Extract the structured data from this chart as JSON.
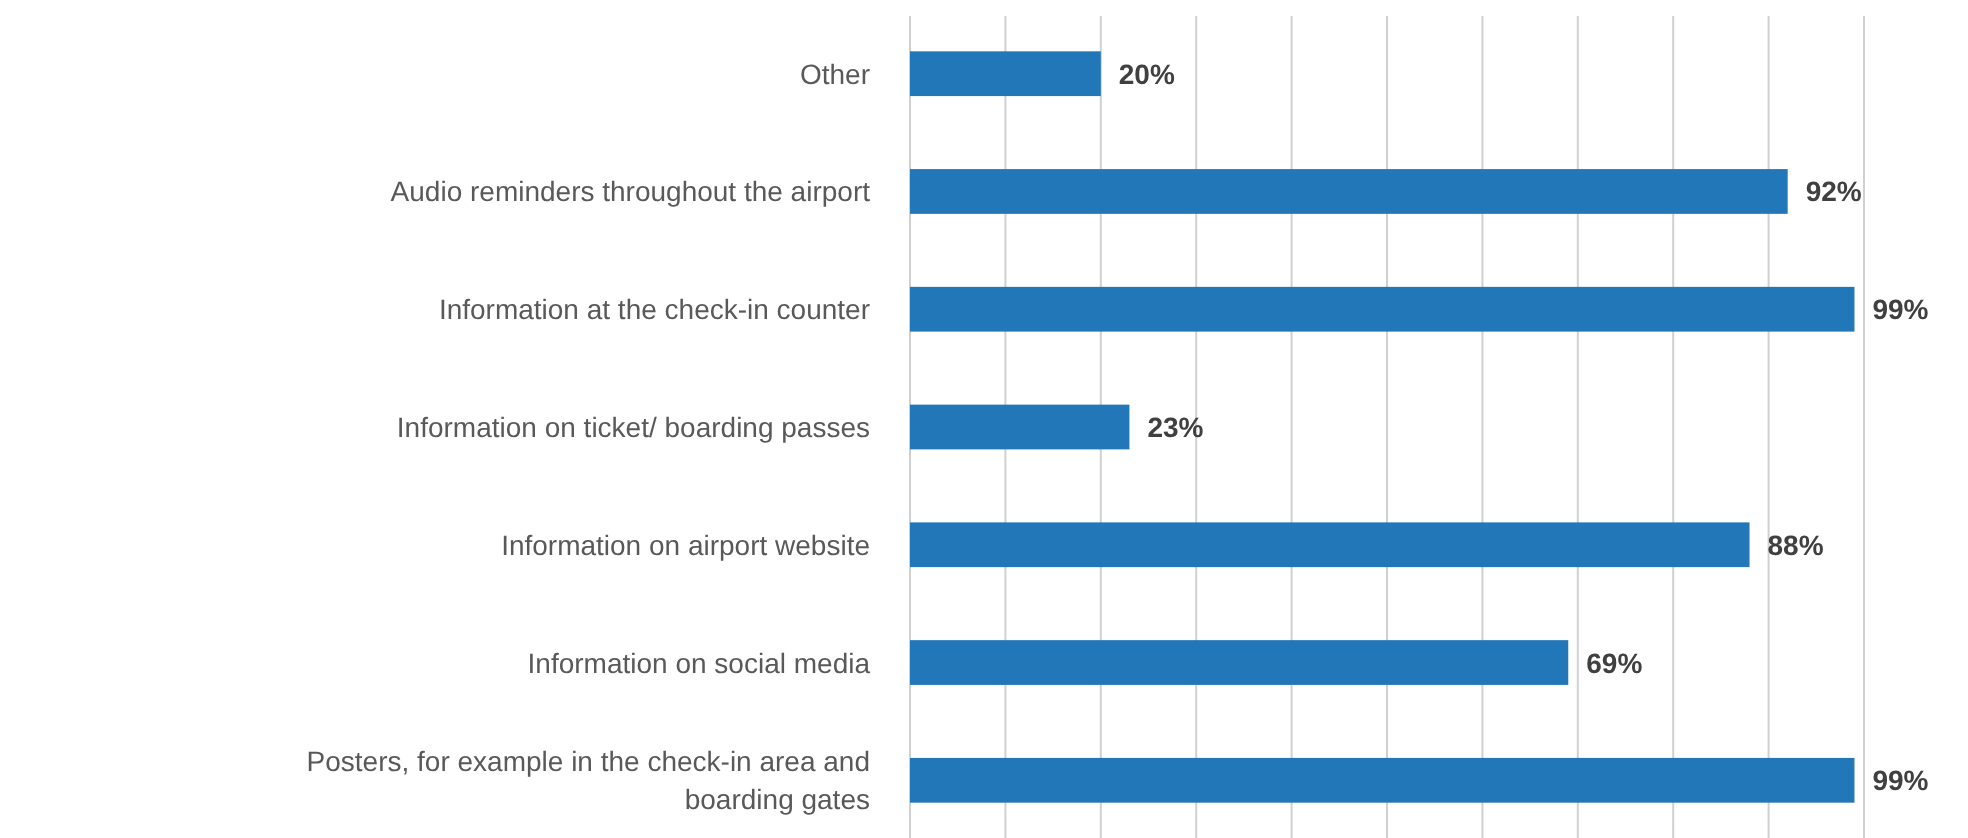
{
  "chart_data": {
    "type": "bar",
    "orientation": "horizontal",
    "categories": [
      "Other",
      "Audio reminders throughout the airport",
      "Information at the check-in counter",
      "Information on ticket/ boarding passes",
      "Information on airport website",
      "Information on social media",
      "Posters, for example in the check-in area and boarding gates"
    ],
    "values": [
      20,
      92,
      99,
      23,
      88,
      69,
      99
    ],
    "value_labels": [
      "20%",
      "92%",
      "99%",
      "23%",
      "88%",
      "69%",
      "99%"
    ],
    "color": "#2177b7",
    "xlim": [
      0,
      100
    ],
    "xticks": [
      0,
      10,
      20,
      30,
      40,
      50,
      60,
      70,
      80,
      90,
      100
    ],
    "grid": "x",
    "tick_labels": "y"
  }
}
